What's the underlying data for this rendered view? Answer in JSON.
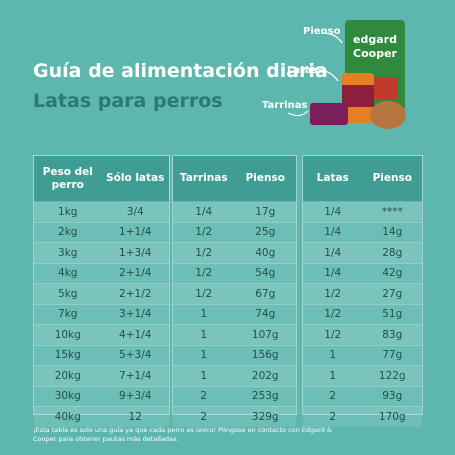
{
  "header": {
    "title": "Guía de alimentación diaria",
    "subtitle": "Latas para perros"
  },
  "product": {
    "labels": [
      "Pienso",
      "Latas",
      "Tarrinas"
    ],
    "brand": [
      "edgard",
      "Cooper"
    ]
  },
  "table": {
    "headers": [
      "Peso del perro",
      "Sólo latas",
      "Tarrinas",
      "Pienso",
      "Latas",
      "Pienso"
    ],
    "rows": [
      [
        "1kg",
        "3/4",
        "1/4",
        "17g",
        "1/4",
        "****"
      ],
      [
        "2kg",
        "1+1/4",
        "1/2",
        "25g",
        "1/4",
        "14g"
      ],
      [
        "3kg",
        "1+3/4",
        "1/2",
        "40g",
        "1/4",
        "28g"
      ],
      [
        "4kg",
        "2+1/4",
        "1/2",
        "54g",
        "1/4",
        "42g"
      ],
      [
        "5kg",
        "2+1/2",
        "1/2",
        "67g",
        "1/2",
        "27g"
      ],
      [
        "7kg",
        "3+1/4",
        "1",
        "74g",
        "1/2",
        "51g"
      ],
      [
        "10kg",
        "4+1/4",
        "1",
        "107g",
        "1/2",
        "83g"
      ],
      [
        "15kg",
        "5+3/4",
        "1",
        "156g",
        "1",
        "77g"
      ],
      [
        "20kg",
        "7+1/4",
        "1",
        "202g",
        "1",
        "122g"
      ],
      [
        "30kg",
        "9+3/4",
        "2",
        "253g",
        "2",
        "93g"
      ],
      [
        "40kg",
        "12",
        "2",
        "329g",
        "2",
        "170g"
      ]
    ]
  },
  "footnote": "¡Esta tabla es solo una guía ya que cada perro es único! Póngase en contacto con Edgard & Cooper para obtener pautas más detalladas."
}
